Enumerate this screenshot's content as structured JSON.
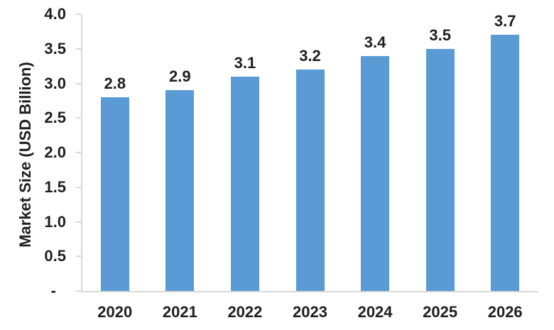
{
  "chart_data": {
    "type": "bar",
    "title": "",
    "categories": [
      "2020",
      "2021",
      "2022",
      "2023",
      "2024",
      "2025",
      "2026"
    ],
    "values": [
      2.8,
      2.9,
      3.1,
      3.2,
      3.4,
      3.5,
      3.7
    ],
    "data_labels": [
      "2.8",
      "2.9",
      "3.1",
      "3.2",
      "3.4",
      "3.5",
      "3.7"
    ],
    "xlabel": "",
    "ylabel": "Market Size (USD Billion)",
    "ylim": [
      0,
      4.0
    ],
    "yticks": [
      {
        "value": 4.0,
        "label": "4.0"
      },
      {
        "value": 3.5,
        "label": "3.5"
      },
      {
        "value": 3.0,
        "label": "3.0"
      },
      {
        "value": 2.5,
        "label": "2.5"
      },
      {
        "value": 2.0,
        "label": "2.0"
      },
      {
        "value": 1.5,
        "label": "1.5"
      },
      {
        "value": 1.0,
        "label": "1.0"
      },
      {
        "value": 0.5,
        "label": "0.5"
      },
      {
        "value": 0.0,
        "label": "-"
      }
    ],
    "grid": "off",
    "legend": "none",
    "colors": {
      "bar": "#5B9BD5",
      "axis": "#D9D9D9",
      "text": "#1f1f1f"
    }
  }
}
